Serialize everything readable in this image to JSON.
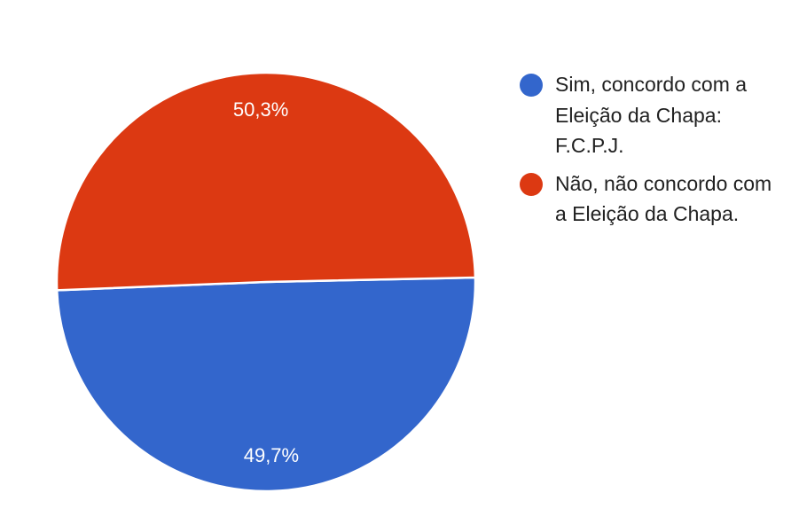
{
  "chart_data": {
    "type": "pie",
    "slices": [
      {
        "label": "Sim, concordo com a Eleição da Chapa: F.C.P.J.",
        "value": 49.7,
        "display": "49,7%",
        "color": "#3366cc"
      },
      {
        "label": "Não, não concordo com a Eleição da Chapa.",
        "value": 50.3,
        "display": "50,3%",
        "color": "#dc3912"
      }
    ],
    "legend_position": "right"
  }
}
